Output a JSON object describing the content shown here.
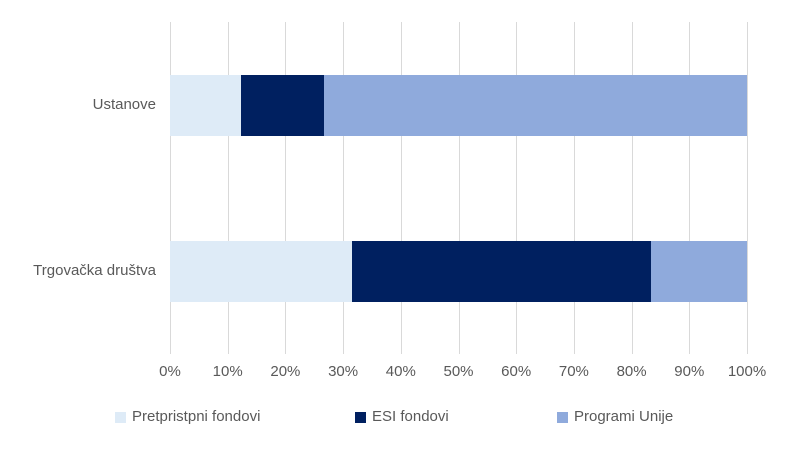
{
  "chart_data": {
    "type": "bar",
    "orientation": "horizontal",
    "stacked": true,
    "title": "",
    "xlabel": "",
    "ylabel": "",
    "categories": [
      "Ustanove",
      "Trgovačka društva"
    ],
    "series": [
      {
        "name": "Pretpristpni fondovi",
        "color": "#DEEBF7",
        "values": [
          12.3,
          31.6
        ]
      },
      {
        "name": "ESI fondovi",
        "color": "#002060",
        "values": [
          14.4,
          51.7
        ]
      },
      {
        "name": "Programi Unije",
        "color": "#8FAADC",
        "values": [
          73.3,
          16.7
        ]
      }
    ],
    "x_ticks": [
      "0%",
      "10%",
      "20%",
      "30%",
      "40%",
      "50%",
      "60%",
      "70%",
      "80%",
      "90%",
      "100%"
    ],
    "xlim": [
      0,
      100
    ],
    "grid": "vertical",
    "legend_position": "bottom"
  },
  "colors": {
    "background": "#FFFFFF",
    "gridline": "#D9D9D9",
    "text": "#595959"
  }
}
